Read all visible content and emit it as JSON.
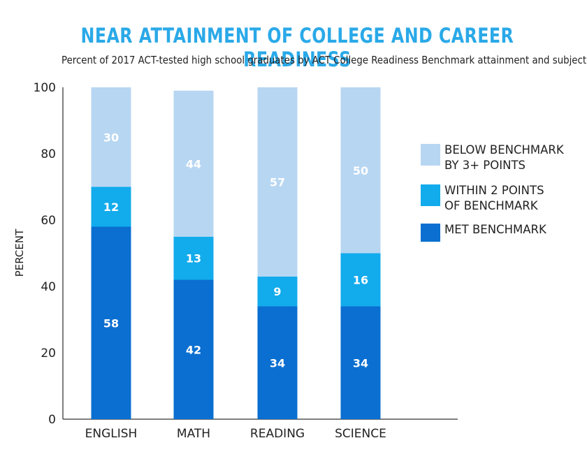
{
  "chart_data": {
    "type": "bar",
    "stacked": true,
    "title": "NEAR ATTAINMENT OF COLLEGE AND CAREER READINESS",
    "subtitle": "Percent of 2017 ACT-tested high school graduates by ACT College Readiness Benchmark attainment and subject",
    "ylabel": "PERCENT",
    "xlabel": "",
    "ylim": [
      0,
      100
    ],
    "yticks": [
      "0",
      "20",
      "40",
      "60",
      "80",
      "100"
    ],
    "categories": [
      "ENGLISH",
      "MATH",
      "READING",
      "SCIENCE"
    ],
    "series": [
      {
        "name": "MET BENCHMARK",
        "color": "#0a6fd0",
        "values": [
          58,
          42,
          34,
          34
        ]
      },
      {
        "name": "WITHIN 2 POINTS OF BENCHMARK",
        "color": "#12abec",
        "values": [
          12,
          13,
          9,
          16
        ]
      },
      {
        "name": "BELOW BENCHMARK BY 3+ POINTS",
        "color": "#b7d6f2",
        "values": [
          30,
          44,
          57,
          50
        ]
      }
    ],
    "legend": [
      {
        "line1": "BELOW BENCHMARK",
        "line2": "BY 3+ POINTS",
        "color": "#b7d6f2"
      },
      {
        "line1": "WITHIN 2 POINTS",
        "line2": "OF BENCHMARK",
        "color": "#12abec"
      },
      {
        "line1": "MET BENCHMARK",
        "line2": "",
        "color": "#0a6fd0"
      }
    ],
    "legend_position": "right"
  }
}
